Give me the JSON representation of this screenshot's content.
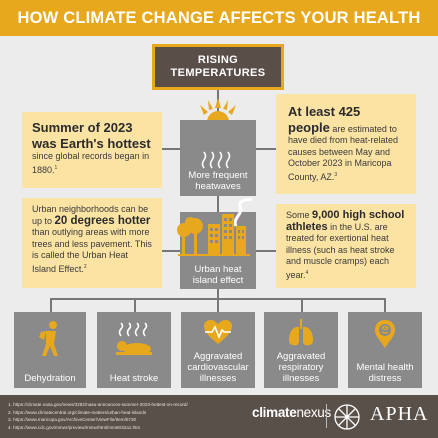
{
  "banner": {
    "title": "HOW CLIMATE CHANGE AFFECTS YOUR HEALTH"
  },
  "center": {
    "rising_line1": "RISING",
    "rising_line2": "TEMPERATURES",
    "heatwaves_line1": "More frequent",
    "heatwaves_line2": "heatwaves",
    "uhi_line1": "Urban heat",
    "uhi_line2": "island effect"
  },
  "cards": {
    "summer": {
      "big": "Summer of 2023 was Earth's hottest",
      "rest": " since global records began in 1880.",
      "sup": "1"
    },
    "deaths": {
      "big1": "At least 425",
      "big2": "people",
      "rest": " are estimated to have died from heat-related causes between May and October 2023 in Maricopa County, AZ.",
      "sup": "3"
    },
    "urban": {
      "pre": "Urban neighborhoods can be up to ",
      "bold": "20 degrees hotter",
      "rest": " than outlying areas with more trees and less pavement. This is called the Urban Heat Island Effect.",
      "sup": "2"
    },
    "athletes": {
      "pre": "Some ",
      "bold": "9,000 high school athletes",
      "rest": " in the U.S. are treated for exertional heat illness (such as heat stroke and muscle cramps) each year.",
      "sup": "4"
    }
  },
  "effects": [
    {
      "line1": "Dehydration",
      "line2": "",
      "icon": "dehydration-icon"
    },
    {
      "line1": "Heat stroke",
      "line2": "",
      "icon": "heat-stroke-icon"
    },
    {
      "line1": "Aggravated",
      "line2": "cardiovascular",
      "line3": "illnesses",
      "icon": "heart-icon"
    },
    {
      "line1": "Aggravated",
      "line2": "respiratory",
      "line3": "illnesses",
      "icon": "lungs-icon"
    },
    {
      "line1": "Mental health",
      "line2": "distress",
      "icon": "brain-icon"
    }
  ],
  "footer": {
    "refs": [
      "1.  https://climate.nasa.gov/news/3282/nasa-announces-summer-2023-hottest-on-record/",
      "2.  https://www.climatecentral.org/climate-matters/urban-heat-islands",
      "3.  https://www.maricopa.gov/ArchiveCenter/ViewFile/Item/5730",
      "4.  https://www.cdc.gov/mmwr/preview/mmwrhtml/mm6032a1.htm"
    ],
    "brand_bold": "climate",
    "brand_light": "nexus",
    "apha": "APHA"
  },
  "colors": {
    "accent": "#e8a81e",
    "card": "#fbe3a4",
    "grey": "#8a8a8a",
    "dark": "#5a504a"
  }
}
